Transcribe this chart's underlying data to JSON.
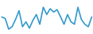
{
  "values": [
    12.5,
    12.2,
    10.0,
    10.5,
    12.0,
    13.8,
    10.5,
    11.5,
    10.2,
    11.8,
    13.0,
    11.0,
    14.5,
    13.0,
    14.2,
    13.5,
    14.0,
    12.5,
    11.0,
    13.0,
    11.5,
    11.0,
    14.5,
    12.0,
    11.0,
    10.5,
    12.5
  ],
  "line_color": "#3399CC",
  "bg_color": "#ffffff",
  "linewidth": 1.2,
  "ylim": [
    9.0,
    16.0
  ]
}
